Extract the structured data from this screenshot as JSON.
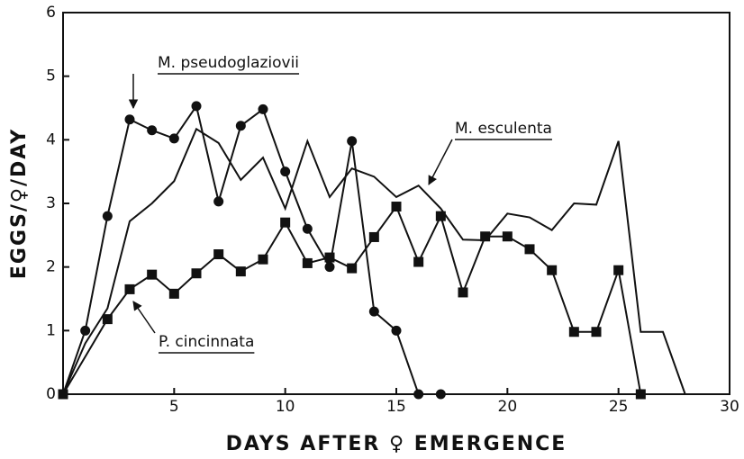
{
  "chart_data": {
    "type": "line",
    "xlabel": "DAYS AFTER ♀ EMERGENCE",
    "ylabel": "EGGS/♀/DAY",
    "xlim": [
      0,
      30
    ],
    "xticks": [
      5,
      10,
      15,
      20,
      25,
      30
    ],
    "ylim": [
      0,
      6
    ],
    "yticks": [
      0,
      1,
      2,
      3,
      4,
      5,
      6
    ],
    "series": [
      {
        "name": "M. pseudoglaziovii",
        "color": "#111111",
        "marker": "circle",
        "x": [
          0,
          1,
          2,
          3,
          4,
          5,
          6,
          7,
          8,
          9,
          10,
          11,
          12,
          13,
          14,
          15,
          16,
          17
        ],
        "values": [
          0,
          1.0,
          2.8,
          4.32,
          4.15,
          4.02,
          4.53,
          3.03,
          4.22,
          4.48,
          3.5,
          2.6,
          2.0,
          3.98,
          1.3,
          1.0,
          0,
          0
        ]
      },
      {
        "name": "M. esculenta",
        "color": "#111111",
        "marker": "none",
        "x": [
          0,
          1,
          2,
          3,
          4,
          5,
          6,
          7,
          8,
          9,
          10,
          11,
          12,
          13,
          14,
          15,
          16,
          17,
          18,
          19,
          20,
          21,
          22,
          23,
          24,
          25,
          26,
          27,
          28
        ],
        "values": [
          0,
          0.8,
          1.35,
          2.72,
          3.0,
          3.35,
          4.17,
          3.95,
          3.37,
          3.72,
          2.92,
          3.98,
          3.1,
          3.55,
          3.42,
          3.1,
          3.28,
          2.92,
          2.43,
          2.42,
          2.84,
          2.78,
          2.58,
          3.0,
          2.98,
          3.98,
          0.98,
          0.98,
          0
        ]
      },
      {
        "name": "P. cincinnata",
        "color": "#111111",
        "marker": "square",
        "x": [
          0,
          2,
          3,
          4,
          5,
          6,
          7,
          8,
          9,
          10,
          11,
          12,
          13,
          14,
          15,
          16,
          17,
          18,
          19,
          20,
          21,
          22,
          23,
          24,
          25,
          26
        ],
        "values": [
          0,
          1.18,
          1.65,
          1.88,
          1.58,
          1.9,
          2.2,
          1.93,
          2.12,
          2.7,
          2.06,
          2.15,
          1.98,
          2.47,
          2.95,
          2.08,
          2.8,
          1.6,
          2.48,
          2.48,
          2.28,
          1.95,
          0.98,
          0.98,
          1.95,
          0
        ]
      }
    ]
  }
}
